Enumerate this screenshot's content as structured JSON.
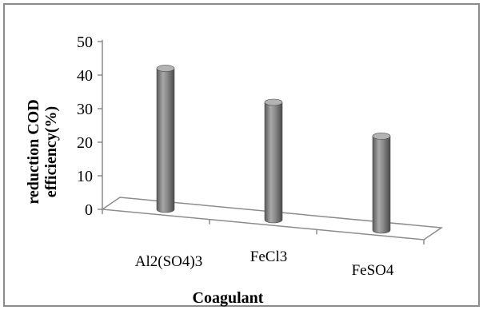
{
  "chart_data": {
    "type": "bar",
    "style": "3d-cylinder",
    "categories": [
      "Al2(SO4)3",
      "FeCl3",
      "FeSO4"
    ],
    "values": [
      42,
      35,
      28
    ],
    "xlabel": "Coagulant",
    "ylabel": "reduction COD efficiency(%)",
    "ylabel_lines": [
      "reduction COD",
      "efficiency(%)"
    ],
    "ylim": [
      0,
      50
    ],
    "yticks": [
      0,
      10,
      20,
      30,
      40,
      50
    ],
    "grid": false,
    "legend": "none",
    "colors": {
      "bar": "#7f7f7f",
      "bar_light": "#b3b3b3",
      "bar_dark": "#4d4d4d",
      "axis": "#8c8c8c"
    }
  }
}
